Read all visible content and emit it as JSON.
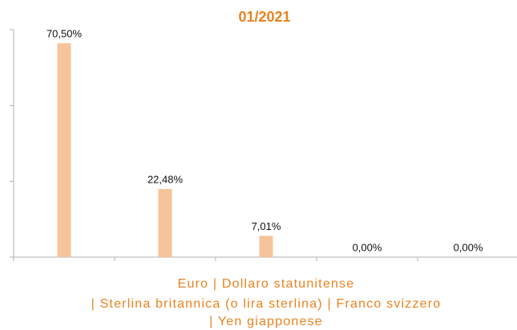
{
  "chart_data": {
    "type": "bar",
    "title": "01/2021",
    "values": [
      70.5,
      22.48,
      7.01,
      0,
      0
    ],
    "value_labels": [
      "70,50%",
      "22,48%",
      "7,01%",
      "0,00%",
      "0,00%"
    ],
    "x_label_lines": [
      "Euro | Dollaro statunitense",
      "| Sterlina britannica (o lira sterlina) | Franco svizzero",
      "| Yen giapponese"
    ],
    "color": "#f6c49a",
    "ylim": [
      0,
      75
    ],
    "yticks": [
      0,
      25,
      50,
      75
    ]
  }
}
